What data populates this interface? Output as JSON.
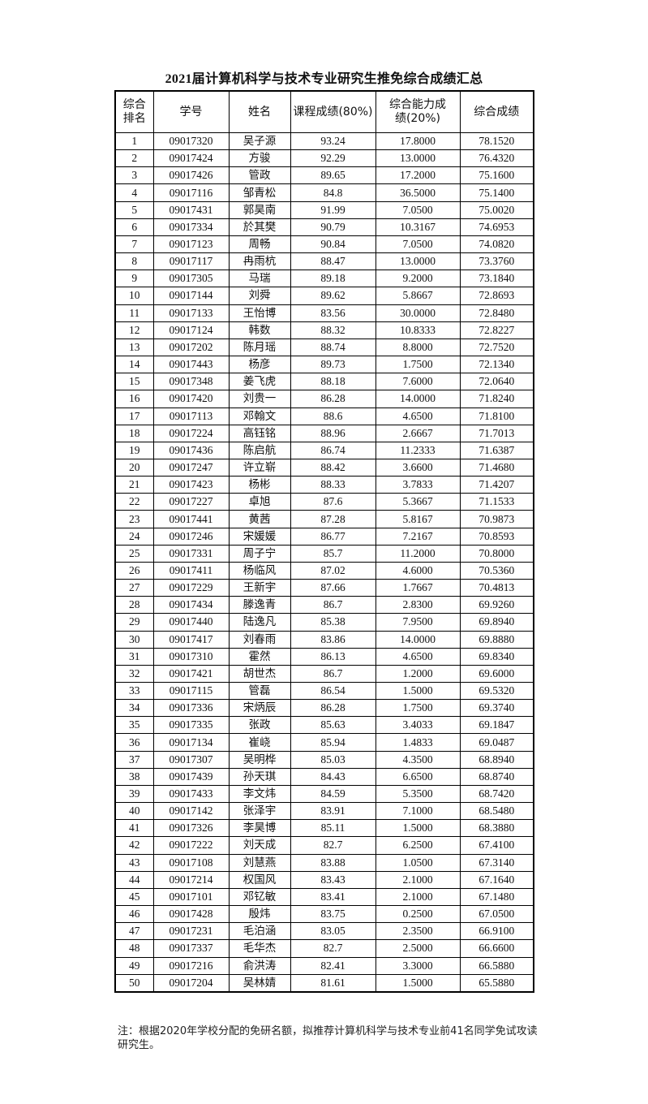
{
  "title": "2021届计算机科学与技术专业研究生推免综合成绩汇总",
  "columns": [
    "综合排名",
    "学号",
    "姓名",
    "课程成绩(80%)",
    "综合能力成绩(20%)",
    "综合成绩"
  ],
  "rows": [
    [
      "1",
      "09017320",
      "吴子源",
      "93.24",
      "17.8000",
      "78.1520"
    ],
    [
      "2",
      "09017424",
      "方骏",
      "92.29",
      "13.0000",
      "76.4320"
    ],
    [
      "3",
      "09017426",
      "管政",
      "89.65",
      "17.2000",
      "75.1600"
    ],
    [
      "4",
      "09017116",
      "邹青松",
      "84.8",
      "36.5000",
      "75.1400"
    ],
    [
      "5",
      "09017431",
      "郭昊南",
      "91.99",
      "7.0500",
      "75.0020"
    ],
    [
      "6",
      "09017334",
      "於其樊",
      "90.79",
      "10.3167",
      "74.6953"
    ],
    [
      "7",
      "09017123",
      "周畅",
      "90.84",
      "7.0500",
      "74.0820"
    ],
    [
      "8",
      "09017117",
      "冉雨杭",
      "88.47",
      "13.0000",
      "73.3760"
    ],
    [
      "9",
      "09017305",
      "马瑞",
      "89.18",
      "9.2000",
      "73.1840"
    ],
    [
      "10",
      "09017144",
      "刘舜",
      "89.62",
      "5.8667",
      "72.8693"
    ],
    [
      "11",
      "09017133",
      "王怡博",
      "83.56",
      "30.0000",
      "72.8480"
    ],
    [
      "12",
      "09017124",
      "韩数",
      "88.32",
      "10.8333",
      "72.8227"
    ],
    [
      "13",
      "09017202",
      "陈月瑶",
      "88.74",
      "8.8000",
      "72.7520"
    ],
    [
      "14",
      "09017443",
      "杨彦",
      "89.73",
      "1.7500",
      "72.1340"
    ],
    [
      "15",
      "09017348",
      "姜飞虎",
      "88.18",
      "7.6000",
      "72.0640"
    ],
    [
      "16",
      "09017420",
      "刘贵一",
      "86.28",
      "14.0000",
      "71.8240"
    ],
    [
      "17",
      "09017113",
      "邓翰文",
      "88.6",
      "4.6500",
      "71.8100"
    ],
    [
      "18",
      "09017224",
      "高钰铭",
      "88.96",
      "2.6667",
      "71.7013"
    ],
    [
      "19",
      "09017436",
      "陈启航",
      "86.74",
      "11.2333",
      "71.6387"
    ],
    [
      "20",
      "09017247",
      "许立崭",
      "88.42",
      "3.6600",
      "71.4680"
    ],
    [
      "21",
      "09017423",
      "杨彬",
      "88.33",
      "3.7833",
      "71.4207"
    ],
    [
      "22",
      "09017227",
      "卓旭",
      "87.6",
      "5.3667",
      "71.1533"
    ],
    [
      "23",
      "09017441",
      "黄茜",
      "87.28",
      "5.8167",
      "70.9873"
    ],
    [
      "24",
      "09017246",
      "宋媛媛",
      "86.77",
      "7.2167",
      "70.8593"
    ],
    [
      "25",
      "09017331",
      "周子宁",
      "85.7",
      "11.2000",
      "70.8000"
    ],
    [
      "26",
      "09017411",
      "杨临风",
      "87.02",
      "4.6000",
      "70.5360"
    ],
    [
      "27",
      "09017229",
      "王新宇",
      "87.66",
      "1.7667",
      "70.4813"
    ],
    [
      "28",
      "09017434",
      "滕逸青",
      "86.7",
      "2.8300",
      "69.9260"
    ],
    [
      "29",
      "09017440",
      "陆逸凡",
      "85.38",
      "7.9500",
      "69.8940"
    ],
    [
      "30",
      "09017417",
      "刘春雨",
      "83.86",
      "14.0000",
      "69.8880"
    ],
    [
      "31",
      "09017310",
      "霍然",
      "86.13",
      "4.6500",
      "69.8340"
    ],
    [
      "32",
      "09017421",
      "胡世杰",
      "86.7",
      "1.2000",
      "69.6000"
    ],
    [
      "33",
      "09017115",
      "管磊",
      "86.54",
      "1.5000",
      "69.5320"
    ],
    [
      "34",
      "09017336",
      "宋炳辰",
      "86.28",
      "1.7500",
      "69.3740"
    ],
    [
      "35",
      "09017335",
      "张政",
      "85.63",
      "3.4033",
      "69.1847"
    ],
    [
      "36",
      "09017134",
      "崔峣",
      "85.94",
      "1.4833",
      "69.0487"
    ],
    [
      "37",
      "09017307",
      "吴明桦",
      "85.03",
      "4.3500",
      "68.8940"
    ],
    [
      "38",
      "09017439",
      "孙天琪",
      "84.43",
      "6.6500",
      "68.8740"
    ],
    [
      "39",
      "09017433",
      "李文炜",
      "84.59",
      "5.3500",
      "68.7420"
    ],
    [
      "40",
      "09017142",
      "张泽宇",
      "83.91",
      "7.1000",
      "68.5480"
    ],
    [
      "41",
      "09017326",
      "李昊博",
      "85.11",
      "1.5000",
      "68.3880"
    ],
    [
      "42",
      "09017222",
      "刘天成",
      "82.7",
      "6.2500",
      "67.4100"
    ],
    [
      "43",
      "09017108",
      "刘慧燕",
      "83.88",
      "1.0500",
      "67.3140"
    ],
    [
      "44",
      "09017214",
      "权国风",
      "83.43",
      "2.1000",
      "67.1640"
    ],
    [
      "45",
      "09017101",
      "邓钇敏",
      "83.41",
      "2.1000",
      "67.1480"
    ],
    [
      "46",
      "09017428",
      "殷炜",
      "83.75",
      "0.2500",
      "67.0500"
    ],
    [
      "47",
      "09017231",
      "毛泊涵",
      "83.05",
      "2.3500",
      "66.9100"
    ],
    [
      "48",
      "09017337",
      "毛华杰",
      "82.7",
      "2.5000",
      "66.6600"
    ],
    [
      "49",
      "09017216",
      "俞洪涛",
      "82.41",
      "3.3000",
      "66.5880"
    ],
    [
      "50",
      "09017204",
      "吴林婧",
      "81.61",
      "1.5000",
      "65.5880"
    ]
  ],
  "note": "注：根据2020年学校分配的免研名额，拟推荐计算机科学与技术专业前41名同学免试攻读研究生。"
}
